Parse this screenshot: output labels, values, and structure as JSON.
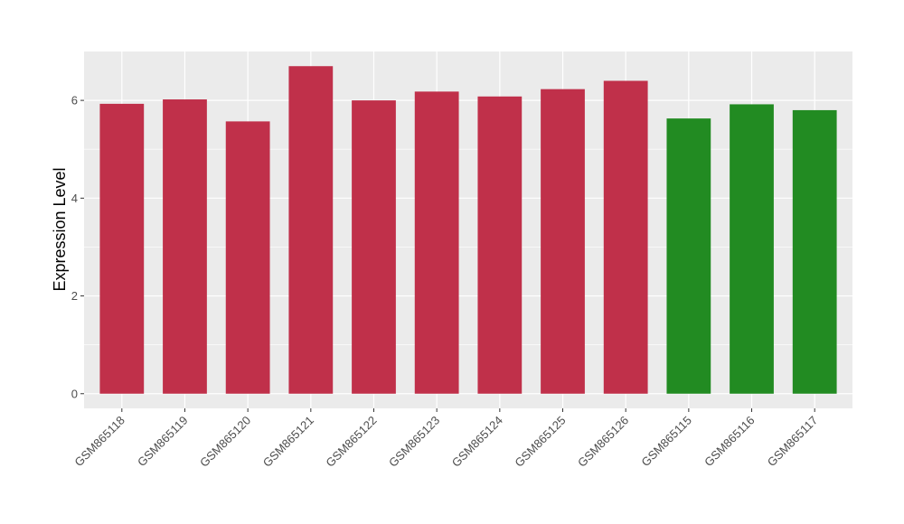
{
  "chart_data": {
    "type": "bar",
    "title": "",
    "xlabel": "",
    "ylabel": "Expression Level",
    "ylim": [
      -0.3,
      7.0
    ],
    "yticks": [
      0,
      2,
      4,
      6
    ],
    "grid": true,
    "legend": "none",
    "categories": [
      "GSM865118",
      "GSM865119",
      "GSM865120",
      "GSM865121",
      "GSM865122",
      "GSM865123",
      "GSM865124",
      "GSM865125",
      "GSM865126",
      "GSM865115",
      "GSM865116",
      "GSM865117"
    ],
    "values": [
      5.93,
      6.02,
      5.57,
      6.7,
      6.0,
      6.18,
      6.08,
      6.23,
      6.4,
      5.63,
      5.92,
      5.8
    ],
    "groups": [
      "red",
      "red",
      "red",
      "red",
      "red",
      "red",
      "red",
      "red",
      "red",
      "green",
      "green",
      "green"
    ],
    "colors": {
      "red": "#c0304a",
      "green": "#228b22",
      "panel": "#ebebeb",
      "grid": "#ffffff"
    }
  }
}
